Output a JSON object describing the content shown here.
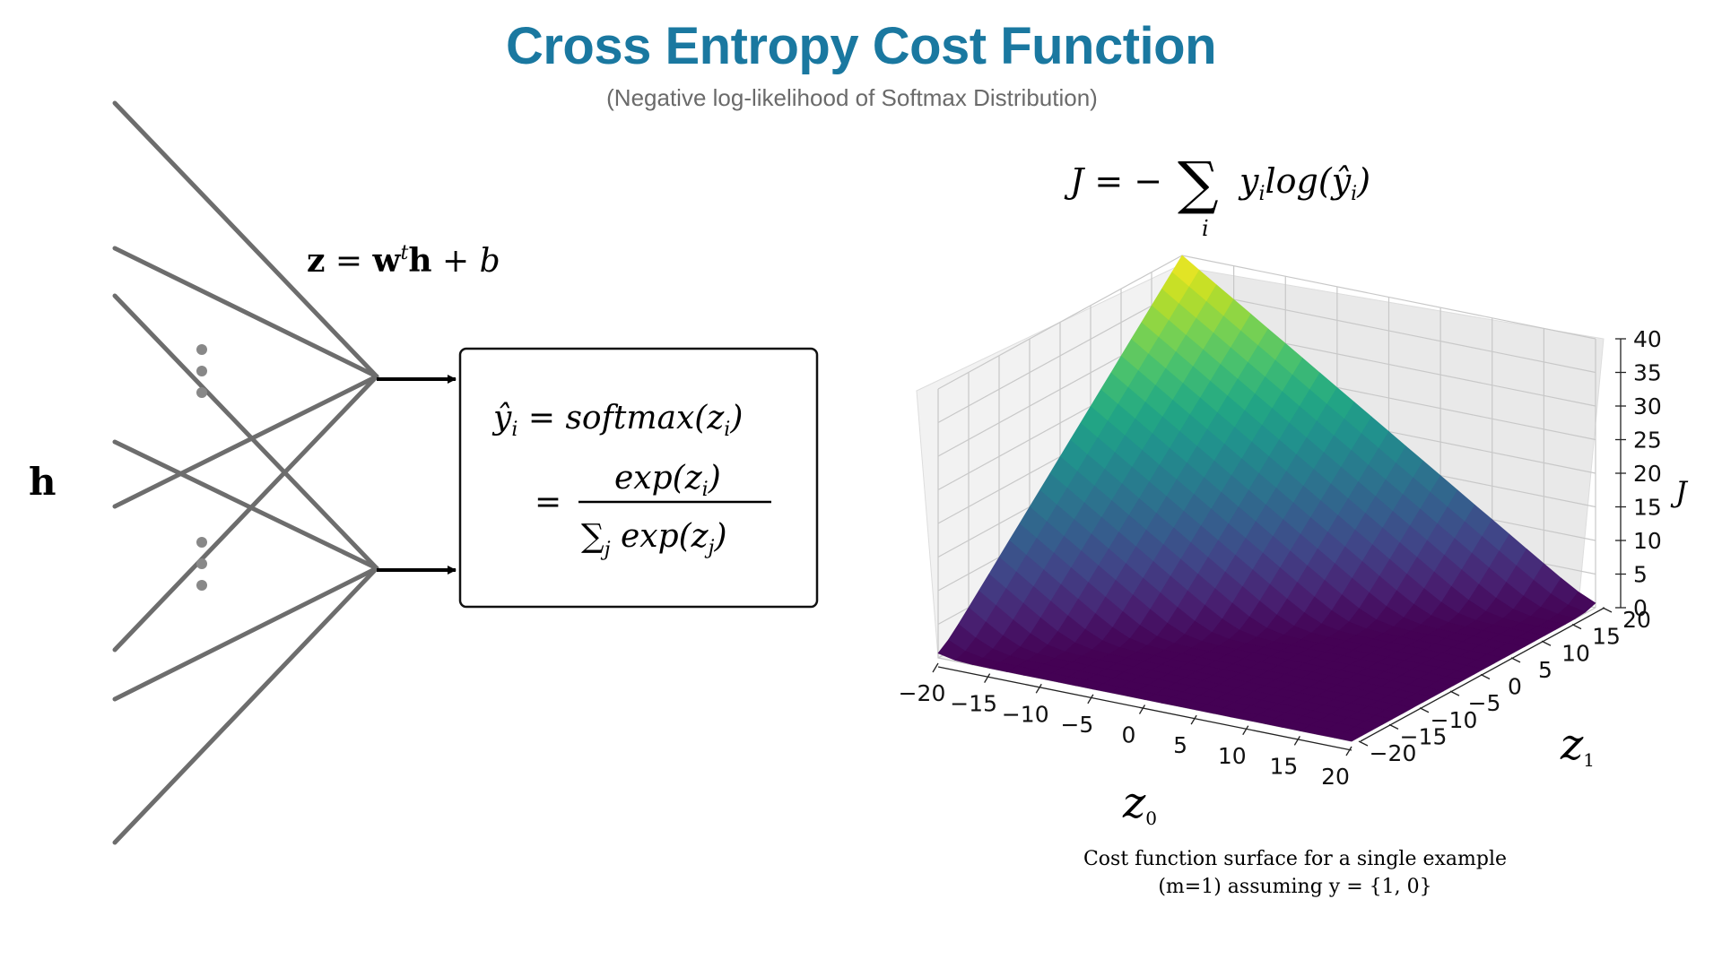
{
  "header": {
    "title": "Cross Entropy Cost Function",
    "subtitle": "(Negative log-likelihood of Softmax Distribution)"
  },
  "network": {
    "input_label": "h",
    "linear_eq": {
      "z": "z",
      "eq": " = ",
      "w": "w",
      "t": "t",
      "h": "h",
      "plus_b": " + b"
    },
    "softmax_box": {
      "line1_lhs": "ŷ",
      "line1_sub": "i",
      "line1_rhs": " = softmax(z",
      "line1_sub2": "i",
      "line1_end": ")",
      "eq_sign": "=",
      "numer": "exp(z",
      "numer_sub": "i",
      "numer_end": ")",
      "denom_sigma": "∑",
      "denom_j": "j",
      "denom": " exp(z",
      "denom_sub": "j",
      "denom_end": ")"
    }
  },
  "cost_equation": {
    "lhs": "J = −",
    "sigma": "∑",
    "sigma_index": "i",
    "term": "y",
    "term_sub": "i",
    "log": "log(ŷ",
    "log_sub": "i",
    "log_end": ")"
  },
  "chart_data": {
    "type": "surface",
    "x": {
      "label": "z",
      "label_sub": "0",
      "range": [
        -20,
        20
      ],
      "ticks": [
        "−20",
        "−15",
        "−10",
        "−5",
        "0",
        "5",
        "10",
        "15",
        "20"
      ]
    },
    "y": {
      "label": "z",
      "label_sub": "1",
      "range": [
        -20,
        20
      ],
      "ticks": [
        "−20",
        "−15",
        "−10",
        "−5",
        "0",
        "5",
        "10",
        "15",
        "20"
      ]
    },
    "z": {
      "label": "J",
      "range": [
        0,
        40
      ],
      "ticks": [
        "0",
        "5",
        "10",
        "15",
        "20",
        "25",
        "30",
        "35",
        "40"
      ]
    },
    "function": "J = log(exp(z0)+exp(z1)) − z0",
    "corner_values": [
      {
        "z0": -20,
        "z1": -20,
        "J": 0.69
      },
      {
        "z0": 20,
        "z1": -20,
        "J": 0
      },
      {
        "z0": 20,
        "z1": 20,
        "J": 0.69
      },
      {
        "z0": -20,
        "z1": 20,
        "J": 40
      }
    ],
    "colormap": "viridis",
    "grid": true,
    "caption_line1": "Cost function surface for a single example",
    "caption_line2": "(m=1) assuming y = {1, 0}"
  },
  "colors": {
    "title": "#1a78a0",
    "subtitle": "#6a6a6a",
    "network_lines": "#6d6d6d",
    "dots": "#888888",
    "pane_back": "#ebebeb",
    "pane_side": "#f2f2f2",
    "grid": "#c8c8c8"
  }
}
